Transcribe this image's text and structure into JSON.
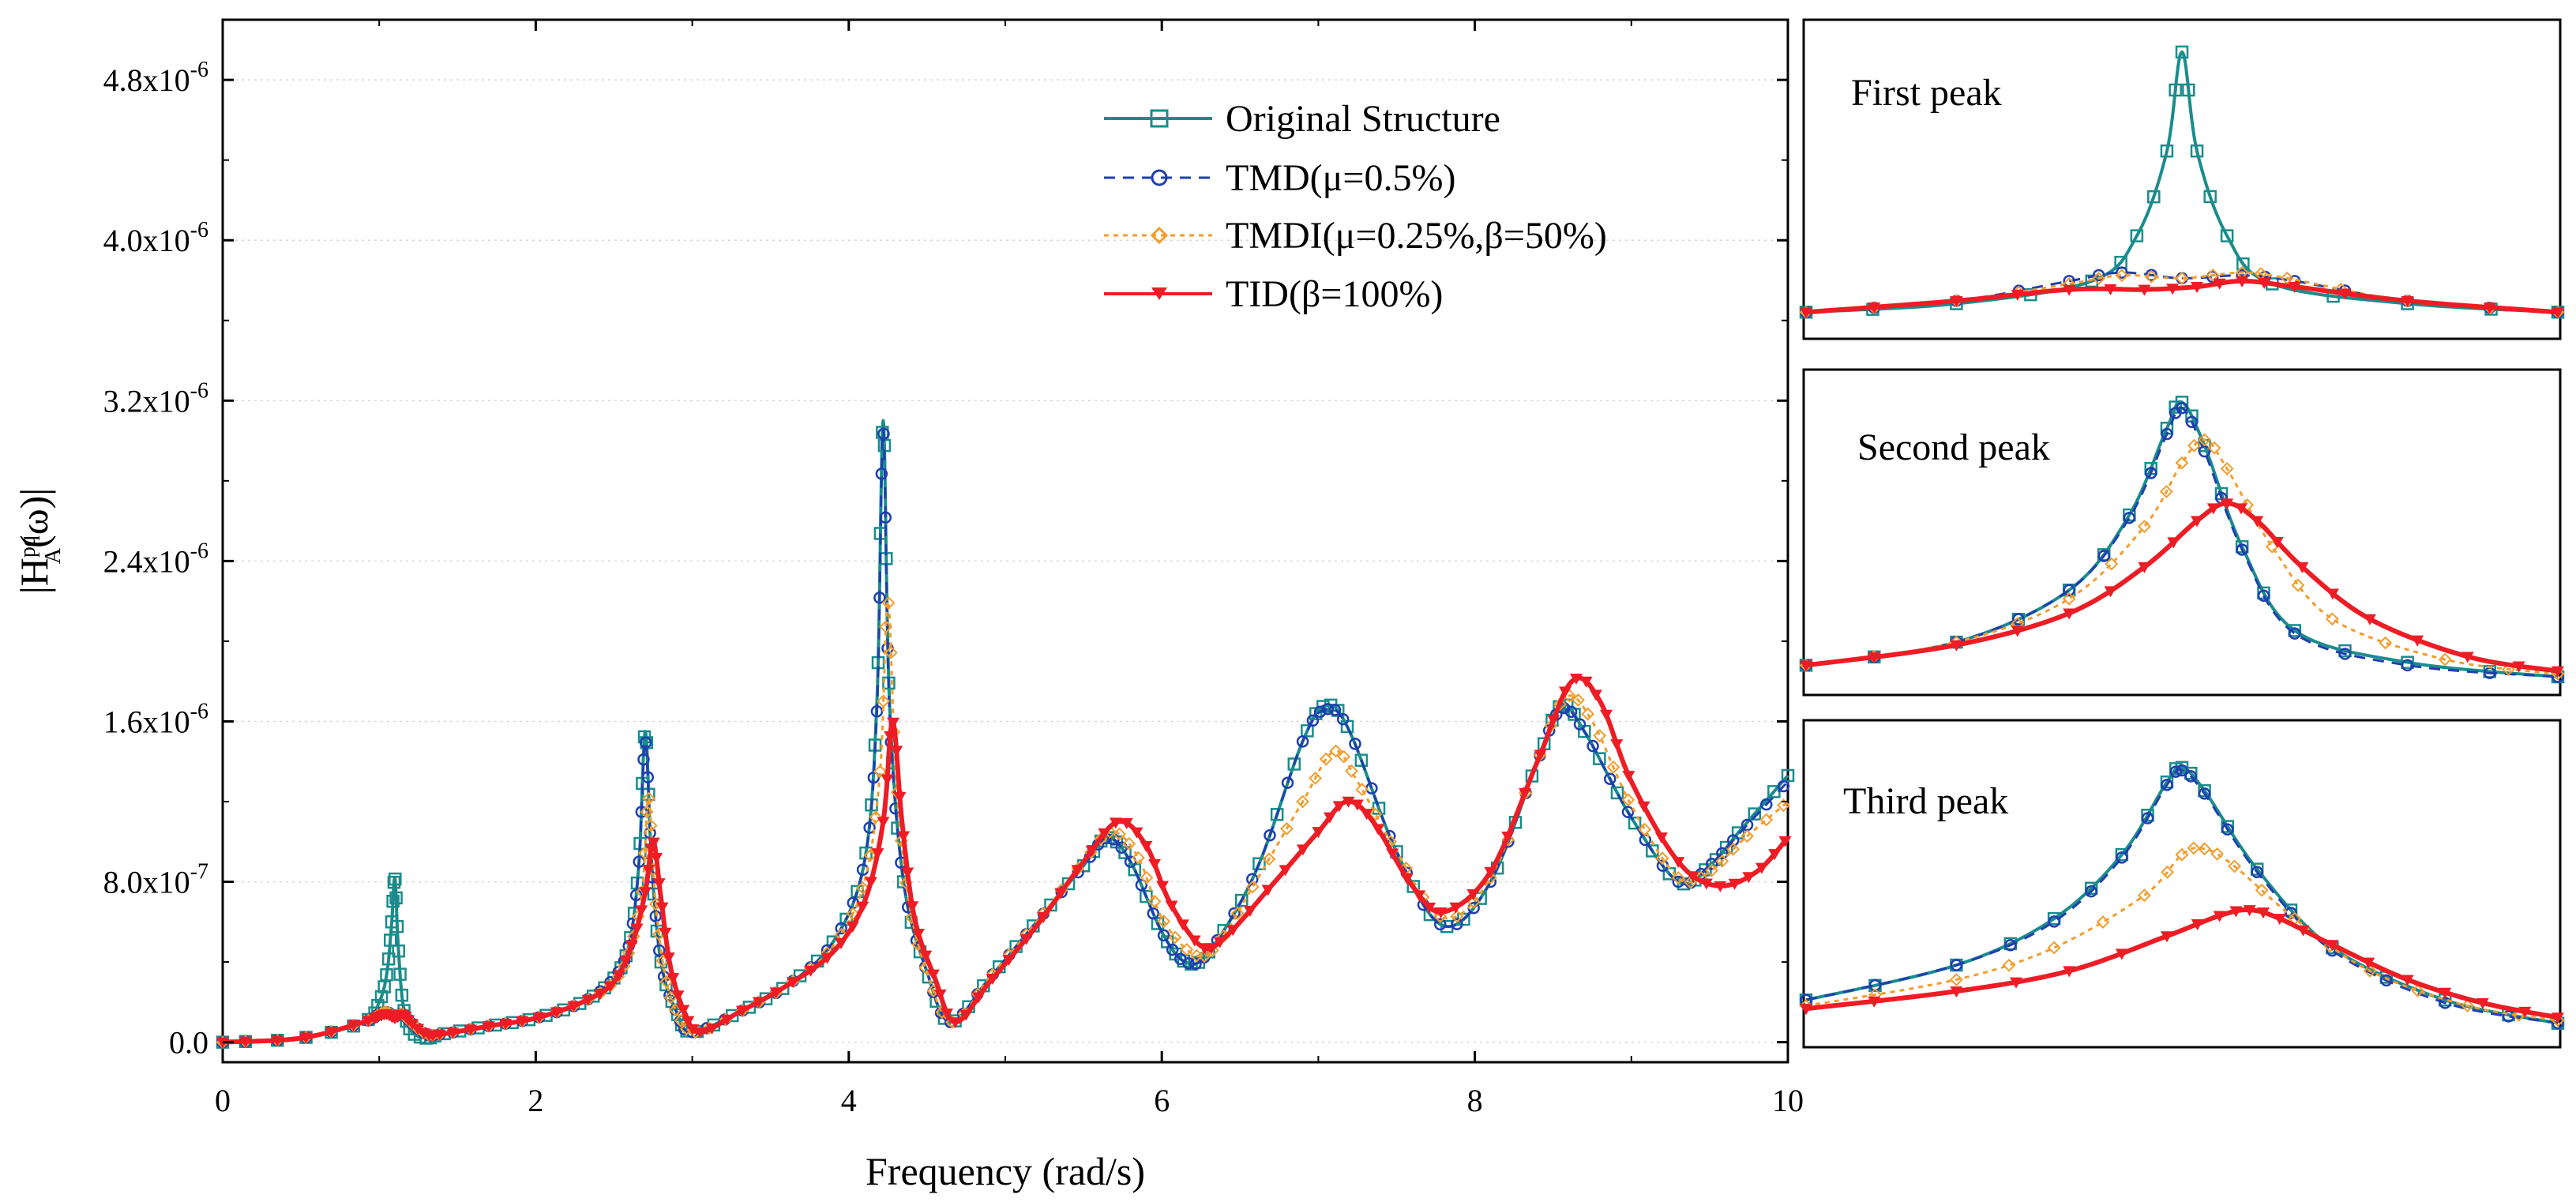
{
  "colors": {
    "original": "#1a8c8c",
    "tmd": "#1f3fb0",
    "tmdi": "#f39c2b",
    "tid": "#ee1c24"
  },
  "chart_data": [
    {
      "type": "line",
      "xlabel": "Frequency (rad/s)",
      "ylabel": "|H_A^pq(ω)|",
      "ylabel_main": "|H",
      "ylabel_sup": "pq",
      "ylabel_sub": "A",
      "ylabel_tail": "(ω)|",
      "xlim": [
        0,
        10
      ],
      "ylim": [
        -1e-07,
        5.1e-06
      ],
      "xticks": [
        0,
        2,
        4,
        6,
        8,
        10
      ],
      "xtick_labels": [
        "0",
        "2",
        "4",
        "6",
        "8",
        "10"
      ],
      "yticks": [
        0,
        8e-07,
        1.6e-06,
        2.4e-06,
        3.2e-06,
        4e-06,
        4.8e-06
      ],
      "ytick_labels": [
        {
          "mant": "0.0",
          "exp": ""
        },
        {
          "mant": "8.0x10",
          "exp": "-7"
        },
        {
          "mant": "1.6x10",
          "exp": "-6"
        },
        {
          "mant": "2.4x10",
          "exp": "-6"
        },
        {
          "mant": "3.2x10",
          "exp": "-6"
        },
        {
          "mant": "4.0x10",
          "exp": "-6"
        },
        {
          "mant": "4.8x10",
          "exp": "-6"
        }
      ],
      "legend_position": "top-center",
      "series": [
        {
          "name": "Original Structure",
          "marker": "square",
          "x": [
            0,
            0.5,
            0.9,
            1.0,
            1.05,
            1.08,
            1.1,
            1.12,
            1.15,
            1.2,
            1.3,
            1.4,
            1.7,
            2.0,
            2.3,
            2.5,
            2.6,
            2.66,
            2.7,
            2.74,
            2.8,
            2.9,
            3.0,
            3.3,
            3.6,
            3.9,
            4.1,
            4.18,
            4.22,
            4.26,
            4.35,
            4.5,
            4.65,
            4.9,
            5.2,
            5.5,
            5.65,
            5.8,
            6.0,
            6.15,
            6.3,
            6.6,
            6.9,
            7.05,
            7.2,
            7.5,
            7.8,
            8.1,
            8.4,
            8.55,
            8.7,
            9.0,
            9.3,
            9.5,
            9.7,
            10
          ],
          "y": [
            0,
            0.02,
            0.1,
            0.2,
            0.35,
            0.6,
            0.82,
            0.5,
            0.2,
            0.06,
            0.02,
            0.04,
            0.08,
            0.12,
            0.2,
            0.32,
            0.5,
            0.9,
            1.55,
            0.9,
            0.4,
            0.15,
            0.05,
            0.15,
            0.28,
            0.5,
            0.9,
            1.7,
            3.1,
            1.7,
            0.8,
            0.35,
            0.1,
            0.32,
            0.6,
            0.88,
            1.02,
            0.9,
            0.55,
            0.4,
            0.45,
            0.85,
            1.5,
            1.68,
            1.55,
            0.95,
            0.58,
            0.8,
            1.4,
            1.68,
            1.55,
            1.12,
            0.8,
            0.88,
            1.06,
            1.33
          ]
        },
        {
          "name": "TMD(μ=0.5%)",
          "marker": "circle",
          "x": [
            0,
            0.5,
            0.9,
            1.0,
            1.05,
            1.1,
            1.15,
            1.2,
            1.3,
            1.4,
            1.7,
            2.0,
            2.3,
            2.5,
            2.6,
            2.66,
            2.7,
            2.74,
            2.8,
            2.9,
            3.0,
            3.3,
            3.6,
            3.9,
            4.1,
            4.18,
            4.22,
            4.26,
            4.35,
            4.5,
            4.65,
            4.9,
            5.2,
            5.5,
            5.65,
            5.8,
            6.0,
            6.15,
            6.3,
            6.6,
            6.9,
            7.05,
            7.2,
            7.5,
            7.8,
            8.1,
            8.4,
            8.55,
            8.7,
            9.0,
            9.3,
            9.5,
            9.7,
            10
          ],
          "y": [
            0,
            0.02,
            0.1,
            0.14,
            0.15,
            0.13,
            0.14,
            0.1,
            0.04,
            0.04,
            0.08,
            0.12,
            0.2,
            0.32,
            0.5,
            0.9,
            1.5,
            0.9,
            0.4,
            0.15,
            0.05,
            0.15,
            0.28,
            0.5,
            0.9,
            1.65,
            3.05,
            1.65,
            0.8,
            0.35,
            0.1,
            0.32,
            0.6,
            0.88,
            1.02,
            0.9,
            0.55,
            0.4,
            0.45,
            0.85,
            1.5,
            1.66,
            1.55,
            0.95,
            0.58,
            0.8,
            1.4,
            1.66,
            1.55,
            1.12,
            0.8,
            0.88,
            1.05,
            1.3
          ]
        },
        {
          "name": "TMDI(μ=0.25%,β=50%)",
          "marker": "diamond",
          "x": [
            0,
            0.5,
            0.9,
            1.0,
            1.05,
            1.1,
            1.15,
            1.2,
            1.3,
            1.4,
            1.7,
            2.0,
            2.3,
            2.5,
            2.6,
            2.68,
            2.72,
            2.76,
            2.82,
            2.9,
            3.02,
            3.3,
            3.6,
            3.9,
            4.1,
            4.2,
            4.25,
            4.3,
            4.38,
            4.5,
            4.66,
            4.9,
            5.2,
            5.5,
            5.68,
            5.85,
            6.0,
            6.2,
            6.35,
            6.6,
            6.9,
            7.1,
            7.25,
            7.5,
            7.8,
            8.1,
            8.4,
            8.58,
            8.75,
            9.0,
            9.3,
            9.5,
            9.7,
            10
          ],
          "y": [
            0,
            0.02,
            0.1,
            0.14,
            0.15,
            0.13,
            0.14,
            0.1,
            0.04,
            0.04,
            0.08,
            0.12,
            0.2,
            0.3,
            0.46,
            0.75,
            1.22,
            0.75,
            0.36,
            0.15,
            0.05,
            0.15,
            0.28,
            0.48,
            0.8,
            1.35,
            2.2,
            1.35,
            0.72,
            0.35,
            0.1,
            0.32,
            0.6,
            0.9,
            1.05,
            0.92,
            0.62,
            0.44,
            0.48,
            0.8,
            1.2,
            1.45,
            1.3,
            0.95,
            0.62,
            0.82,
            1.4,
            1.72,
            1.6,
            1.18,
            0.82,
            0.85,
            1.0,
            1.2
          ]
        },
        {
          "name": "TID(β=100%)",
          "marker": "triangle-down",
          "x": [
            0,
            0.5,
            0.9,
            1.0,
            1.05,
            1.1,
            1.15,
            1.2,
            1.3,
            1.4,
            1.7,
            2.0,
            2.3,
            2.5,
            2.62,
            2.7,
            2.75,
            2.8,
            2.86,
            2.95,
            3.05,
            3.3,
            3.6,
            3.9,
            4.1,
            4.22,
            4.28,
            4.34,
            4.42,
            4.55,
            4.68,
            4.9,
            5.2,
            5.5,
            5.72,
            5.9,
            6.05,
            6.25,
            6.4,
            6.7,
            7.0,
            7.18,
            7.35,
            7.6,
            7.8,
            8.1,
            8.4,
            8.62,
            8.8,
            9.0,
            9.3,
            9.55,
            9.8,
            10
          ],
          "y": [
            0,
            0.02,
            0.1,
            0.13,
            0.14,
            0.12,
            0.14,
            0.1,
            0.04,
            0.04,
            0.08,
            0.12,
            0.2,
            0.3,
            0.5,
            0.75,
            1.0,
            0.72,
            0.38,
            0.15,
            0.05,
            0.15,
            0.28,
            0.45,
            0.7,
            1.1,
            1.6,
            1.1,
            0.62,
            0.32,
            0.1,
            0.3,
            0.58,
            0.9,
            1.1,
            0.98,
            0.7,
            0.48,
            0.52,
            0.78,
            1.05,
            1.2,
            1.1,
            0.78,
            0.65,
            0.85,
            1.4,
            1.8,
            1.7,
            1.3,
            0.9,
            0.78,
            0.85,
            1.02
          ]
        }
      ],
      "value_unit_note": "y values in units of 1e-6"
    },
    {
      "type": "line",
      "title": "First peak",
      "series": [
        {
          "name": "Original Structure",
          "x": [
            0,
            0.2,
            0.38,
            0.44,
            0.48,
            0.5,
            0.52,
            0.56,
            0.62,
            0.8,
            1.0
          ],
          "y": [
            0.03,
            0.06,
            0.14,
            0.3,
            0.6,
            0.95,
            0.6,
            0.3,
            0.13,
            0.06,
            0.03
          ]
        },
        {
          "name": "TMD(μ=0.5%)",
          "x": [
            0,
            0.2,
            0.35,
            0.42,
            0.5,
            0.58,
            0.65,
            0.8,
            1.0
          ],
          "y": [
            0.03,
            0.07,
            0.14,
            0.17,
            0.15,
            0.16,
            0.14,
            0.07,
            0.03
          ]
        },
        {
          "name": "TMDI(μ=0.25%,β=50%)",
          "x": [
            0,
            0.2,
            0.35,
            0.42,
            0.5,
            0.58,
            0.64,
            0.8,
            1.0
          ],
          "y": [
            0.03,
            0.07,
            0.13,
            0.16,
            0.15,
            0.17,
            0.15,
            0.07,
            0.03
          ]
        },
        {
          "name": "TID(β=100%)",
          "x": [
            0,
            0.2,
            0.35,
            0.45,
            0.52,
            0.58,
            0.65,
            0.8,
            1.0
          ],
          "y": [
            0.03,
            0.07,
            0.11,
            0.11,
            0.12,
            0.14,
            0.12,
            0.07,
            0.03
          ]
        }
      ]
    },
    {
      "type": "line",
      "title": "Second peak",
      "series": [
        {
          "name": "Original Structure",
          "x": [
            0,
            0.2,
            0.35,
            0.43,
            0.48,
            0.5,
            0.53,
            0.58,
            0.65,
            0.8,
            1.0
          ],
          "y": [
            0.04,
            0.12,
            0.3,
            0.56,
            0.86,
            0.95,
            0.8,
            0.45,
            0.16,
            0.05,
            0.0
          ]
        },
        {
          "name": "TMD(μ=0.5%)",
          "x": [
            0,
            0.2,
            0.35,
            0.43,
            0.48,
            0.5,
            0.53,
            0.58,
            0.65,
            0.8,
            1.0
          ],
          "y": [
            0.04,
            0.12,
            0.3,
            0.55,
            0.84,
            0.93,
            0.78,
            0.44,
            0.15,
            0.04,
            0.0
          ]
        },
        {
          "name": "TMDI(μ=0.25%,β=50%)",
          "x": [
            0,
            0.2,
            0.35,
            0.45,
            0.5,
            0.53,
            0.56,
            0.62,
            0.7,
            0.85,
            1.0
          ],
          "y": [
            0.04,
            0.12,
            0.27,
            0.52,
            0.74,
            0.82,
            0.72,
            0.45,
            0.2,
            0.06,
            0.01
          ]
        },
        {
          "name": "TID(β=100%)",
          "x": [
            0,
            0.2,
            0.35,
            0.45,
            0.52,
            0.56,
            0.6,
            0.66,
            0.75,
            0.88,
            1.0
          ],
          "y": [
            0.04,
            0.11,
            0.22,
            0.38,
            0.54,
            0.6,
            0.54,
            0.38,
            0.2,
            0.07,
            0.02
          ]
        }
      ]
    },
    {
      "type": "line",
      "title": "Third peak",
      "series": [
        {
          "name": "Original Structure",
          "x": [
            0,
            0.2,
            0.33,
            0.42,
            0.48,
            0.5,
            0.53,
            0.6,
            0.7,
            0.85,
            1.0
          ],
          "y": [
            0.1,
            0.22,
            0.38,
            0.6,
            0.85,
            0.9,
            0.82,
            0.55,
            0.28,
            0.1,
            0.02
          ]
        },
        {
          "name": "TMD(μ=0.5%)",
          "x": [
            0,
            0.2,
            0.33,
            0.42,
            0.48,
            0.5,
            0.53,
            0.6,
            0.7,
            0.85,
            1.0
          ],
          "y": [
            0.1,
            0.22,
            0.37,
            0.59,
            0.84,
            0.89,
            0.81,
            0.54,
            0.27,
            0.09,
            0.02
          ]
        },
        {
          "name": "TMDI(μ=0.25%,β=50%)",
          "x": [
            0,
            0.2,
            0.33,
            0.45,
            0.5,
            0.53,
            0.57,
            0.65,
            0.75,
            0.88,
            1.0
          ],
          "y": [
            0.08,
            0.17,
            0.28,
            0.46,
            0.6,
            0.62,
            0.56,
            0.38,
            0.2,
            0.08,
            0.03
          ]
        },
        {
          "name": "TID(β=100%)",
          "x": [
            0,
            0.2,
            0.35,
            0.48,
            0.55,
            0.59,
            0.63,
            0.7,
            0.8,
            0.9,
            1.0
          ],
          "y": [
            0.07,
            0.13,
            0.2,
            0.32,
            0.39,
            0.41,
            0.38,
            0.29,
            0.17,
            0.09,
            0.04
          ]
        }
      ]
    }
  ]
}
